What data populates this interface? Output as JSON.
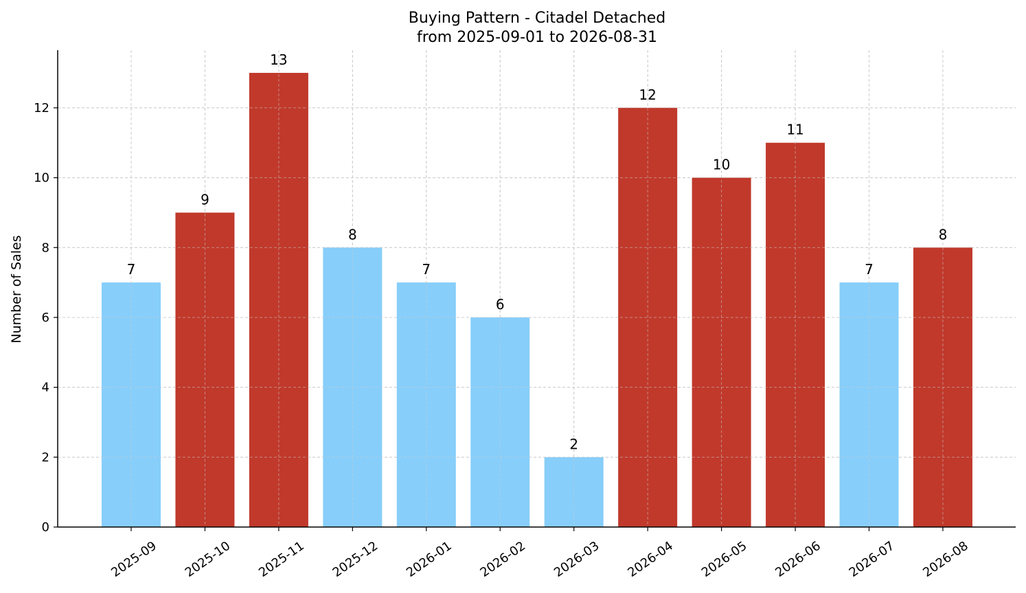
{
  "chart_data": {
    "type": "bar",
    "title_line1": "Buying Pattern - Citadel Detached",
    "title_line2": "from 2025-09-01 to 2026-08-31",
    "xlabel": "",
    "ylabel": "Number of Sales",
    "categories": [
      "2025-09",
      "2025-10",
      "2025-11",
      "2025-12",
      "2026-01",
      "2026-02",
      "2026-03",
      "2026-04",
      "2026-05",
      "2026-06",
      "2026-07",
      "2026-08"
    ],
    "values": [
      7,
      9,
      13,
      8,
      7,
      6,
      2,
      12,
      10,
      11,
      7,
      8
    ],
    "bar_colors": [
      "#87CEFA",
      "#C0392B",
      "#C0392B",
      "#87CEFA",
      "#87CEFA",
      "#87CEFA",
      "#87CEFA",
      "#C0392B",
      "#C0392B",
      "#C0392B",
      "#87CEFA",
      "#C0392B"
    ],
    "ylim": [
      0,
      13.65
    ],
    "yticks": [
      0,
      2,
      4,
      6,
      8,
      10,
      12
    ],
    "grid": true,
    "legend": "none"
  }
}
